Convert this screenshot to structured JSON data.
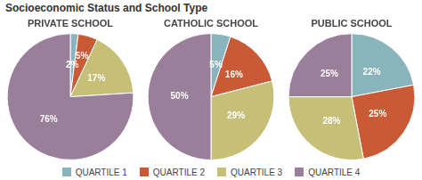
{
  "title": "Socioeconomic Status and School Type",
  "legend": "bottom",
  "chart_data": [
    {
      "type": "pie",
      "title": "PRIVATE SCHOOL",
      "categories": [
        "QUARTILE 1",
        "QUARTILE 2",
        "QUARTILE 3",
        "QUARTILE 4"
      ],
      "values": [
        2,
        5,
        17,
        76
      ],
      "value_labels": [
        "2%",
        "5%",
        "17%",
        "76%"
      ],
      "colors": [
        "#8ab4bb",
        "#c85a35",
        "#c5bf78",
        "#9a7f9a"
      ],
      "data_labels": true
    },
    {
      "type": "pie",
      "title": "CATHOLIC SCHOOL",
      "categories": [
        "QUARTILE 1",
        "QUARTILE 2",
        "QUARTILE 3",
        "QUARTILE 4"
      ],
      "values": [
        5,
        16,
        29,
        50
      ],
      "value_labels": [
        "5%",
        "16%",
        "29%",
        "50%"
      ],
      "colors": [
        "#8ab4bb",
        "#c85a35",
        "#c5bf78",
        "#9a7f9a"
      ],
      "data_labels": true
    },
    {
      "type": "pie",
      "title": "PUBLIC SCHOOL",
      "categories": [
        "QUARTILE 1",
        "QUARTILE 2",
        "QUARTILE 3",
        "QUARTILE 4"
      ],
      "values": [
        22,
        25,
        28,
        25
      ],
      "value_labels": [
        "22%",
        "25%",
        "28%",
        "25%"
      ],
      "colors": [
        "#8ab4bb",
        "#c85a35",
        "#c5bf78",
        "#9a7f9a"
      ],
      "data_labels": true
    }
  ]
}
